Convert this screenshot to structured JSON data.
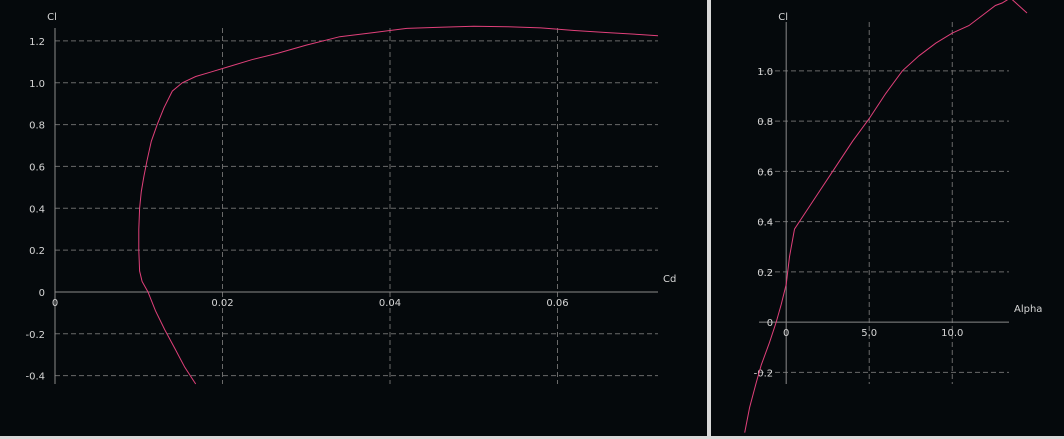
{
  "chart_data": [
    {
      "type": "line",
      "xlabel": "Cd",
      "ylabel": "Cl",
      "xlim": [
        0,
        0.072
      ],
      "ylim": [
        -0.44,
        1.3
      ],
      "x_ticks": [
        0,
        0.02,
        0.04,
        0.06
      ],
      "x_tick_labels": [
        "0",
        "0.02",
        "0.04",
        "0.06"
      ],
      "y_ticks": [
        -0.4,
        -0.2,
        0,
        0.2,
        0.4,
        0.6,
        0.8,
        1.0,
        1.2
      ],
      "y_tick_labels": [
        "-0.4",
        "-0.2",
        "0",
        "0.2",
        "0.4",
        "0.6",
        "0.8",
        "1.0",
        "1.2"
      ],
      "grid": true,
      "series": [
        {
          "color": "#e0407a",
          "x": [
            0.0168,
            0.0155,
            0.0143,
            0.0131,
            0.012,
            0.0111,
            0.0104,
            0.0101,
            0.01,
            0.01,
            0.0101,
            0.0103,
            0.0106,
            0.011,
            0.0115,
            0.0122,
            0.013,
            0.014,
            0.0152,
            0.0168,
            0.0185,
            0.021,
            0.0235,
            0.0265,
            0.03,
            0.034,
            0.038,
            0.042,
            0.046,
            0.05,
            0.054,
            0.058,
            0.062,
            0.066,
            0.07,
            0.072
          ],
          "y": [
            -0.44,
            -0.36,
            -0.27,
            -0.18,
            -0.09,
            0.0,
            0.05,
            0.1,
            0.2,
            0.3,
            0.4,
            0.48,
            0.55,
            0.63,
            0.72,
            0.8,
            0.88,
            0.96,
            1.0,
            1.03,
            1.05,
            1.08,
            1.11,
            1.14,
            1.18,
            1.22,
            1.24,
            1.26,
            1.265,
            1.27,
            1.268,
            1.262,
            1.25,
            1.24,
            1.23,
            1.225
          ]
        }
      ]
    },
    {
      "type": "line",
      "xlabel": "Alpha",
      "ylabel": "Cl",
      "xlim": [
        -2.6,
        14.5
      ],
      "ylim": [
        -0.35,
        1.27
      ],
      "x_ticks": [
        0,
        5,
        10
      ],
      "x_tick_labels": [
        "0",
        "5.0",
        "10.0"
      ],
      "y_ticks": [
        -0.2,
        0,
        0.2,
        0.4,
        0.6,
        0.8,
        1.0
      ],
      "y_tick_labels": [
        "-0.2",
        "0",
        "0.2",
        "0.4",
        "0.6",
        "0.8",
        "1.0"
      ],
      "grid": true,
      "series": [
        {
          "color": "#e0407a",
          "x": [
            -2.5,
            -2.2,
            -1.8,
            -1.5,
            -1.0,
            -0.6,
            -0.3,
            0.0,
            0.2,
            0.5,
            1.0,
            2.0,
            3.0,
            4.0,
            5.0,
            6.0,
            7.0,
            8.0,
            9.0,
            10.0,
            11.0,
            12.0,
            12.6,
            13.0,
            13.5,
            14.0,
            14.5
          ],
          "y": [
            -0.44,
            -0.34,
            -0.24,
            -0.17,
            -0.08,
            0.0,
            0.07,
            0.15,
            0.26,
            0.37,
            0.42,
            0.52,
            0.62,
            0.72,
            0.81,
            0.91,
            1.0,
            1.06,
            1.11,
            1.15,
            1.18,
            1.23,
            1.26,
            1.27,
            1.29,
            1.26,
            1.23
          ]
        }
      ]
    }
  ]
}
